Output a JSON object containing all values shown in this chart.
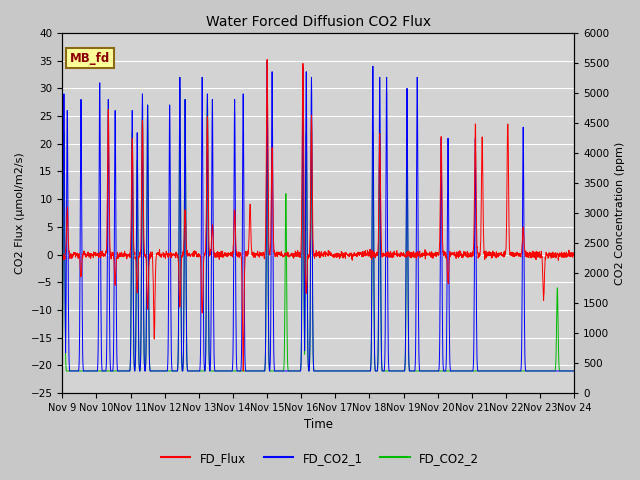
{
  "title": "Water Forced Diffusion CO2 Flux",
  "xlabel": "Time",
  "ylabel_left": "CO2 Flux (μmol/m2/s)",
  "ylabel_right": "CO2 Concentration (ppm)",
  "ylim_left": [
    -25,
    40
  ],
  "ylim_right": [
    0,
    6000
  ],
  "xtick_labels": [
    "Nov 9",
    "Nov 10",
    "Nov 11",
    "Nov 12",
    "Nov 13",
    "Nov 14",
    "Nov 15",
    "Nov 16",
    "Nov 17",
    "Nov 18",
    "Nov 19",
    "Nov 20",
    "Nov 21",
    "Nov 22",
    "Nov 23",
    "Nov 24"
  ],
  "annotation_text": "MB_fd",
  "annotation_box_color": "#FFFF99",
  "annotation_box_edge": "#8B6914",
  "legend_entries": [
    "FD_Flux",
    "FD_CO2_1",
    "FD_CO2_2"
  ],
  "legend_colors": [
    "#FF0000",
    "#0000FF",
    "#00BB00"
  ],
  "flux_color": "#FF0000",
  "co2_1_color": "#0000FF",
  "co2_2_color": "#00BB00",
  "fig_bg_color": "#D8D8D8",
  "plot_bg_color": "#D8D8D8",
  "grid_color": "#FFFFFF",
  "n_days": 15,
  "n_points_per_day": 144
}
